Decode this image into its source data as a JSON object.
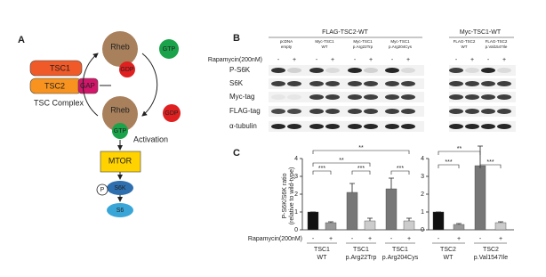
{
  "panel_a": {
    "label": "A",
    "tsc1": "TSC1",
    "tsc2": "TSC2",
    "gap": "GAP",
    "complex": "TSC Complex",
    "rheb_top": "Rheb",
    "gdp_top": "GDP",
    "gtp_free": "GTP",
    "rheb_bottom": "Rheb",
    "gtp_bound": "GTP",
    "gdp_free": "GDP",
    "activation": "Activation",
    "mtor": "MTOR",
    "phospho": "P",
    "s6k": "S6K",
    "s6": "S6"
  },
  "panel_b": {
    "label": "B",
    "groups": [
      "FLAG-TSC2-WT",
      "Myc-TSC1-WT"
    ],
    "lane_labels": [
      [
        "pcDNA",
        "empty"
      ],
      [
        "Myc-TSC1",
        "WT"
      ],
      [
        "Myc-TSC1",
        "p.Arg22Trp"
      ],
      [
        "Myc-TSC1",
        "p.Arg204Cys"
      ],
      [
        "FLAG-TSC2",
        "WT"
      ],
      [
        "FLAG-TSC2",
        "p.Val1547Ile"
      ]
    ],
    "treatment": "Rapamycin(200nM)",
    "signs": [
      "-",
      "+"
    ],
    "rows": [
      "P-S6K",
      "S6K",
      "Myc-tag",
      "FLAG-tag",
      "α-tubulin"
    ]
  },
  "panel_c": {
    "label": "C",
    "y_label": [
      "P-S6K/S6K ratio",
      "(relative to wild-type)"
    ],
    "treatment": "Rapamycin(200nM)"
  },
  "chart_data": [
    {
      "type": "bar",
      "categories": [
        "-",
        "+",
        "-",
        "+",
        "-",
        "+"
      ],
      "groups": [
        [
          "TSC1",
          "WT"
        ],
        [
          "TSC1",
          "p.Arg22Trp"
        ],
        [
          "TSC1",
          "p.Arg204Cys"
        ]
      ],
      "values": [
        1,
        0.4,
        2.1,
        0.5,
        2.3,
        0.5
      ],
      "errors": [
        0,
        0.05,
        0.5,
        0.15,
        0.6,
        0.15
      ],
      "colors": [
        "#111111",
        "#999999",
        "#777777",
        "#cccccc",
        "#777777",
        "#cccccc"
      ],
      "ylim": [
        0,
        4
      ],
      "yticks": [
        0,
        1,
        2,
        3,
        4
      ],
      "annotations": [
        "***",
        "**",
        "**",
        "***",
        "***"
      ]
    },
    {
      "type": "bar",
      "categories": [
        "-",
        "+",
        "-",
        "+"
      ],
      "groups": [
        [
          "TSC2",
          "WT"
        ],
        [
          "TSC2",
          "p.Val1547Ile"
        ]
      ],
      "values": [
        1,
        0.3,
        3.6,
        0.4
      ],
      "errors": [
        0,
        0.05,
        1.1,
        0.05
      ],
      "colors": [
        "#111111",
        "#999999",
        "#777777",
        "#cccccc"
      ],
      "ylim": [
        0,
        4
      ],
      "yticks": [
        0,
        1,
        2,
        3,
        4
      ],
      "annotations": [
        "**",
        "***",
        "***"
      ]
    }
  ]
}
